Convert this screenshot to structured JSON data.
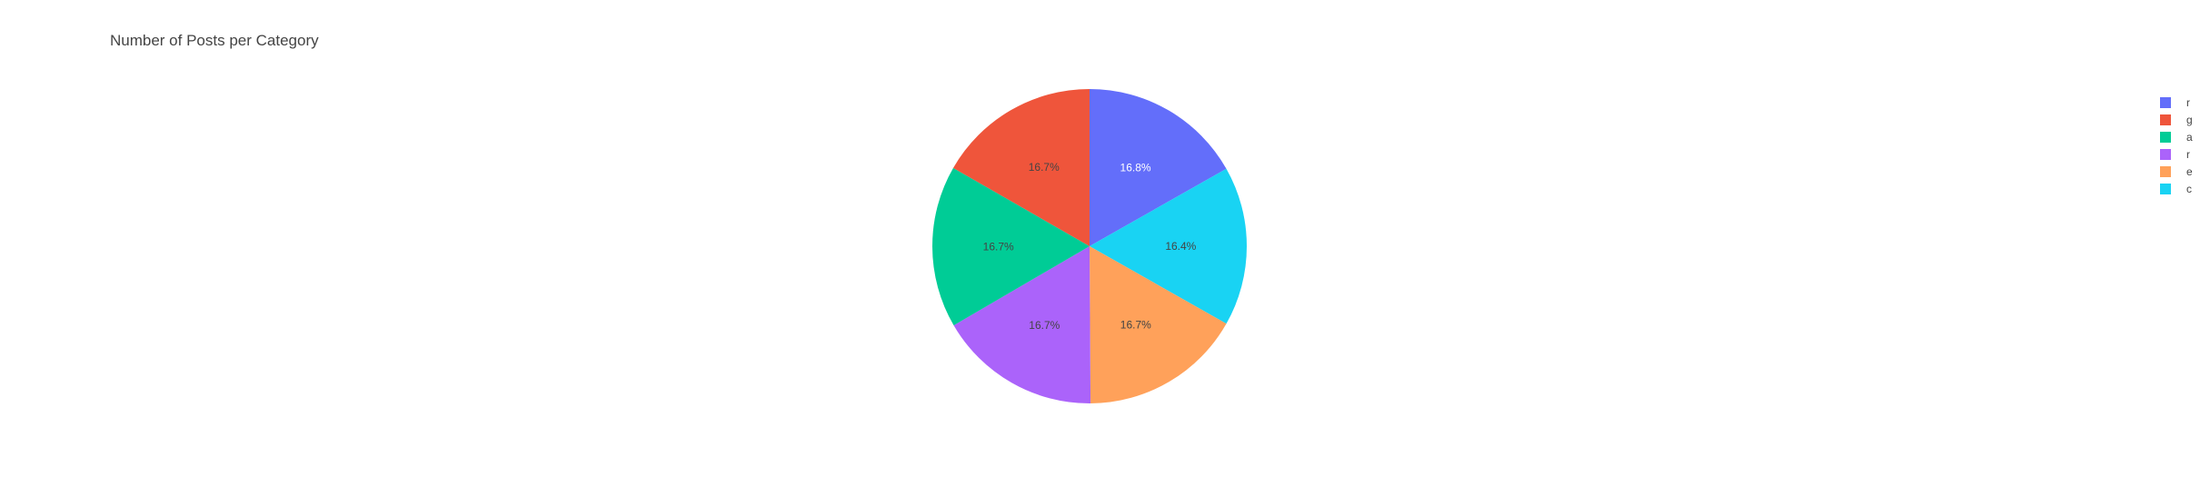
{
  "chart_data": {
    "type": "pie",
    "title": "Number of Posts per Category",
    "slices": [
      {
        "legend_label": "r",
        "percent_label": "16.8%",
        "value": 16.8,
        "color": "#636efa",
        "label_color": "#ffffff"
      },
      {
        "legend_label": "c",
        "percent_label": "16.4%",
        "value": 16.4,
        "color": "#19d3f3",
        "label_color": "#444444"
      },
      {
        "legend_label": "e",
        "percent_label": "16.7%",
        "value": 16.7,
        "color": "#ffa15a",
        "label_color": "#444444"
      },
      {
        "legend_label": "r",
        "percent_label": "16.7%",
        "value": 16.7,
        "color": "#ab63fa",
        "label_color": "#444444"
      },
      {
        "legend_label": "a",
        "percent_label": "16.7%",
        "value": 16.7,
        "color": "#00cc96",
        "label_color": "#444444"
      },
      {
        "legend_label": "g",
        "percent_label": "16.7%",
        "value": 16.7,
        "color": "#ef553b",
        "label_color": "#444444"
      }
    ],
    "legend_order": [
      0,
      5,
      4,
      3,
      2,
      1
    ],
    "legend_position": "right",
    "direction": "clockwise",
    "start_angle": "12 o'clock"
  }
}
